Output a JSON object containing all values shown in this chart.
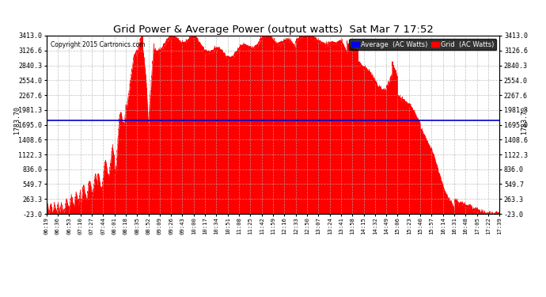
{
  "title": "Grid Power & Average Power (output watts)  Sat Mar 7 17:52",
  "copyright": "Copyright 2015 Cartronics.com",
  "legend_average": "Average  (AC Watts)",
  "legend_grid": "Grid  (AC Watts)",
  "average_value": 1783.7,
  "ylim_min": -23.0,
  "ylim_max": 3413.0,
  "yticks": [
    -23.0,
    263.3,
    549.7,
    836.0,
    1122.3,
    1408.6,
    1695.0,
    1981.3,
    2267.6,
    2554.0,
    2840.3,
    3126.6,
    3413.0
  ],
  "ytick_labels": [
    "-23.0",
    "263.3",
    "549.7",
    "836.0",
    "1122.3",
    "1408.6",
    "1695.0",
    "1981.3",
    "2267.6",
    "2554.0",
    "2840.3",
    "3126.6",
    "3413.0"
  ],
  "background_color": "#ffffff",
  "fill_color": "#ff0000",
  "average_line_color": "#0000cc",
  "grid_color": "#b0b0b0",
  "title_color": "#000000",
  "x_tick_labels": [
    "06:19",
    "06:36",
    "06:53",
    "07:10",
    "07:27",
    "07:44",
    "08:01",
    "08:18",
    "08:35",
    "08:52",
    "09:09",
    "09:26",
    "09:43",
    "10:00",
    "10:17",
    "10:34",
    "10:51",
    "11:08",
    "11:25",
    "11:42",
    "11:59",
    "12:16",
    "12:33",
    "12:50",
    "13:07",
    "13:24",
    "13:41",
    "13:58",
    "14:15",
    "14:32",
    "14:49",
    "15:06",
    "15:23",
    "15:40",
    "15:57",
    "16:14",
    "16:31",
    "16:48",
    "17:05",
    "17:22",
    "17:39"
  ]
}
